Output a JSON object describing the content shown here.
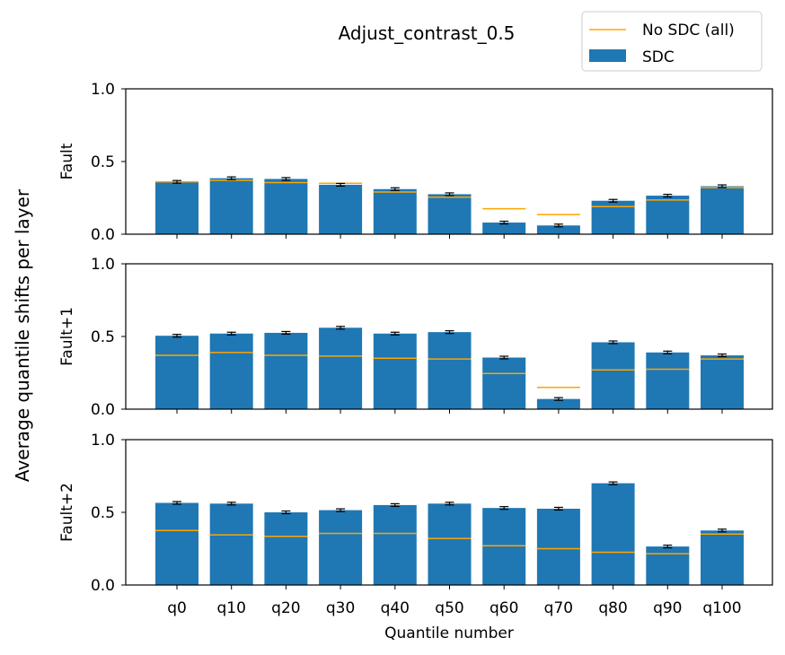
{
  "figure": {
    "title": "Adjust_contrast_0.5",
    "ylabel": "Average quantile shifts per layer",
    "xlabel": "Quantile number"
  },
  "legend": {
    "position": "top-right",
    "entries": [
      {
        "label": "No SDC (all)",
        "type": "line",
        "color": "#ffa500"
      },
      {
        "label": "SDC",
        "type": "bar",
        "color": "#1f77b4"
      }
    ]
  },
  "colors": {
    "bar": "#1f77b4",
    "baseline": "#ffa500",
    "errorbar": "#000000"
  },
  "chart_data": [
    {
      "type": "bar",
      "ylabel": "Fault",
      "categories": [
        "q0",
        "q10",
        "q20",
        "q30",
        "q40",
        "q50",
        "q60",
        "q70",
        "q80",
        "q90",
        "q100"
      ],
      "ylim": [
        0,
        1.0
      ],
      "yticks": [
        "0.0",
        "0.5",
        "1.0"
      ],
      "show_xticklabels": false,
      "series": [
        {
          "name": "SDC",
          "values": [
            0.36,
            0.385,
            0.38,
            0.34,
            0.31,
            0.275,
            0.08,
            0.06,
            0.23,
            0.265,
            0.33
          ]
        },
        {
          "name": "No SDC (all)",
          "values": [
            0.36,
            0.37,
            0.355,
            0.35,
            0.29,
            0.255,
            0.175,
            0.135,
            0.19,
            0.235,
            0.32
          ]
        }
      ]
    },
    {
      "type": "bar",
      "ylabel": "Fault+1",
      "categories": [
        "q0",
        "q10",
        "q20",
        "q30",
        "q40",
        "q50",
        "q60",
        "q70",
        "q80",
        "q90",
        "q100"
      ],
      "ylim": [
        0,
        1.0
      ],
      "yticks": [
        "0.0",
        "0.5",
        "1.0"
      ],
      "show_xticklabels": false,
      "series": [
        {
          "name": "SDC",
          "values": [
            0.505,
            0.52,
            0.525,
            0.56,
            0.52,
            0.53,
            0.355,
            0.07,
            0.46,
            0.39,
            0.37
          ]
        },
        {
          "name": "No SDC (all)",
          "values": [
            0.37,
            0.39,
            0.37,
            0.365,
            0.35,
            0.345,
            0.245,
            0.15,
            0.27,
            0.275,
            0.345
          ]
        }
      ]
    },
    {
      "type": "bar",
      "ylabel": "Fault+2",
      "categories": [
        "q0",
        "q10",
        "q20",
        "q30",
        "q40",
        "q50",
        "q60",
        "q70",
        "q80",
        "q90",
        "q100"
      ],
      "ylim": [
        0,
        1.0
      ],
      "yticks": [
        "0.0",
        "0.5",
        "1.0"
      ],
      "show_xticklabels": true,
      "series": [
        {
          "name": "SDC",
          "values": [
            0.565,
            0.56,
            0.5,
            0.515,
            0.55,
            0.56,
            0.53,
            0.525,
            0.7,
            0.265,
            0.375
          ]
        },
        {
          "name": "No SDC (all)",
          "values": [
            0.375,
            0.345,
            0.335,
            0.355,
            0.355,
            0.32,
            0.27,
            0.25,
            0.225,
            0.215,
            0.35
          ]
        }
      ]
    }
  ]
}
